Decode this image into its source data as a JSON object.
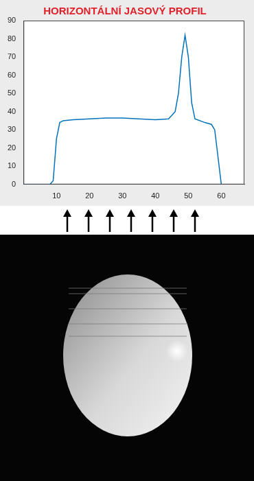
{
  "chart_data": {
    "type": "line",
    "title": "HORIZONTÁLNÍ JASOVÝ PROFIL",
    "x": [
      0,
      8,
      9,
      10,
      11,
      12,
      15,
      20,
      25,
      30,
      35,
      40,
      44,
      46,
      47,
      48,
      49,
      50,
      51,
      52,
      55,
      57,
      58,
      59,
      60
    ],
    "values": [
      0,
      0,
      2,
      25,
      34,
      35,
      35.5,
      36,
      36.5,
      36.5,
      36,
      35.5,
      36,
      40,
      50,
      70,
      82,
      70,
      45,
      36,
      34,
      33,
      30,
      15,
      0
    ],
    "color": "#0072bd",
    "xlim": [
      0,
      67
    ],
    "xticks": [
      10,
      20,
      30,
      40,
      50,
      60
    ],
    "ylim": [
      0,
      90
    ],
    "yticks": [
      0,
      10,
      20,
      30,
      40,
      50,
      60,
      70,
      80,
      90
    ],
    "grid": false
  }
}
